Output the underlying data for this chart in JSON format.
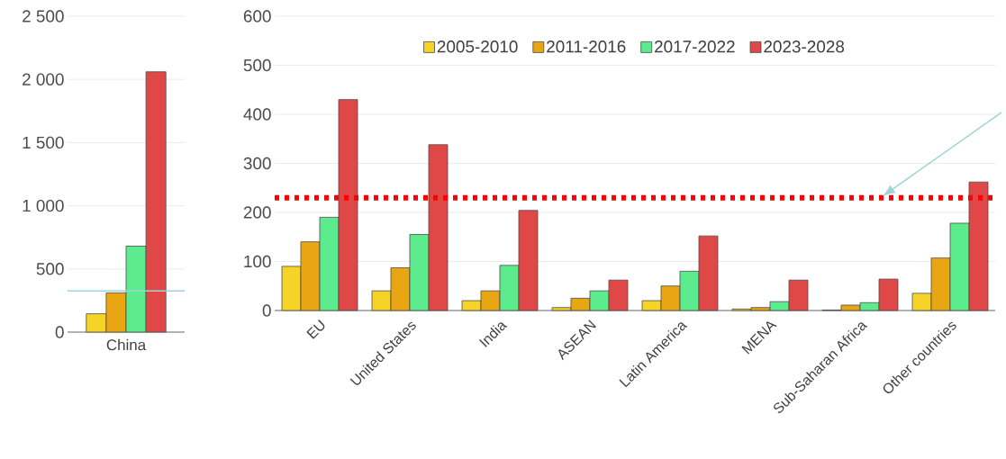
{
  "chart_data": [
    {
      "type": "bar",
      "categories": [
        "China"
      ],
      "series": [
        {
          "color": "#f5d327",
          "values": [
            145
          ]
        },
        {
          "color": "#e8a712",
          "values": [
            310
          ]
        },
        {
          "color": "#5cec8e",
          "values": [
            680
          ]
        },
        {
          "color": "#e04848",
          "values": [
            2060
          ]
        }
      ],
      "ylim": [
        0,
        2500
      ],
      "yticks": [
        0,
        500,
        {
          "value": 1000,
          "label": "1 000"
        },
        {
          "value": 1500,
          "label": "1 500"
        },
        {
          "value": 2000,
          "label": "2 000"
        },
        {
          "value": 2500,
          "label": "2 500"
        }
      ],
      "grid": "y",
      "ref_lines": [
        {
          "axis": "y",
          "value": 325,
          "color": "#9fd3d6",
          "line_style": "solid"
        }
      ]
    },
    {
      "type": "bar",
      "categories": [
        "EU",
        "United States",
        "India",
        "ASEAN",
        "Latin America",
        "MENA",
        "Sub-Saharan Africa",
        "Other countries"
      ],
      "series": [
        {
          "name": "2005-2010",
          "color": "#f5d327",
          "values": [
            90,
            40,
            20,
            6,
            20,
            3,
            1,
            35
          ]
        },
        {
          "name": "2011-2016",
          "color": "#e8a712",
          "values": [
            140,
            87,
            40,
            25,
            50,
            6,
            11,
            107
          ]
        },
        {
          "name": "2017-2022",
          "color": "#5cec8e",
          "values": [
            190,
            155,
            92,
            40,
            80,
            18,
            16,
            178
          ]
        },
        {
          "name": "2023-2028",
          "color": "#e04848",
          "values": [
            430,
            338,
            204,
            62,
            152,
            62,
            64,
            262
          ]
        }
      ],
      "ylim": [
        0,
        600
      ],
      "yticks": [
        0,
        100,
        200,
        300,
        400,
        500,
        600
      ],
      "grid": "y",
      "legend": "top",
      "ref_lines": [
        {
          "axis": "y",
          "value": 230,
          "color": "#ff0000",
          "line_style": "dotted"
        }
      ]
    }
  ]
}
